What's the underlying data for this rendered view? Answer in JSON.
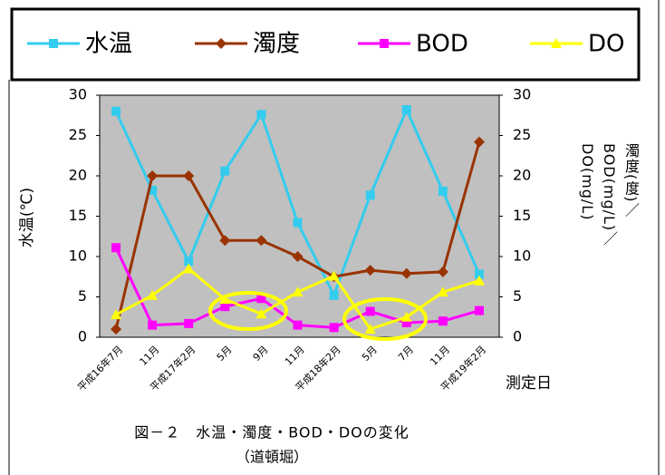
{
  "chart_data": {
    "type": "line",
    "title": "図－２　水温・濁度・BOD・DOの変化",
    "subtitle": "（道頓堀）",
    "xlabel": "測定日",
    "ylabel": "水温(℃)",
    "y2label": "濁度(度)／BOD(mg/L)／DO(mg/L)",
    "categories": [
      "平成16年7月",
      "11月",
      "平成17年2月",
      "5月",
      "9月",
      "11月",
      "平成18年2月",
      "5月",
      "7月",
      "11月",
      "平成19年2月"
    ],
    "series": [
      {
        "name": "水温",
        "color": "#33ccee",
        "marker": "square",
        "values": [
          28,
          18.2,
          9.4,
          20.6,
          27.6,
          14.2,
          5.2,
          17.6,
          28.2,
          18.1,
          7.8
        ]
      },
      {
        "name": "濁度",
        "color": "#993300",
        "marker": "diamond",
        "axis": "y2",
        "values": [
          1.0,
          20,
          20,
          12,
          12,
          10,
          7.5,
          8.3,
          7.9,
          8.1,
          24.2
        ]
      },
      {
        "name": "BOD",
        "color": "#ff00ff",
        "marker": "square",
        "axis": "y2",
        "values": [
          11.1,
          1.5,
          1.7,
          3.8,
          4.8,
          1.5,
          1.2,
          3.2,
          1.8,
          2.0,
          3.3
        ]
      },
      {
        "name": "DO",
        "color": "#ffff00",
        "marker": "triangle",
        "axis": "y2",
        "values": [
          2.8,
          5.2,
          8.5,
          4.7,
          2.9,
          5.6,
          7.6,
          1.0,
          2.5,
          5.6,
          7.0
        ]
      }
    ],
    "ylim": [
      0,
      30
    ],
    "yticks": [
      0,
      5,
      10,
      15,
      20,
      25,
      30
    ],
    "y2lim": [
      0,
      30
    ],
    "y2ticks": [
      0,
      5,
      10,
      15,
      20,
      25,
      30
    ],
    "grid": false,
    "legend": "top"
  }
}
